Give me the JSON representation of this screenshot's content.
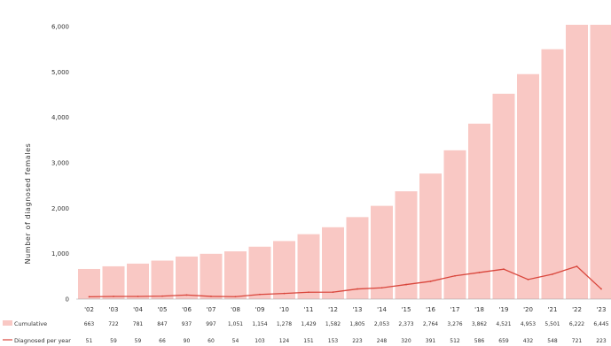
{
  "chart_data": {
    "type": "bar",
    "title": "",
    "xlabel": "",
    "ylabel": "Number of diagnosed females",
    "ylim": [
      0,
      6000
    ],
    "yticks": [
      "0",
      "1,000",
      "2,000",
      "3,000",
      "4,000",
      "5,000",
      "6,000"
    ],
    "grid": false,
    "legend": "bottom-left",
    "categories": [
      "'02",
      "'03",
      "'04",
      "'05",
      "'06",
      "'07",
      "'08",
      "'09",
      "'10",
      "'11",
      "'12",
      "'13",
      "'14",
      "'15",
      "'16",
      "'17",
      "'18",
      "'19",
      "'20",
      "'21",
      "'22",
      "'23"
    ],
    "series": [
      {
        "name": "Cumulative",
        "kind": "bar",
        "color": "#f9c8c4",
        "values": [
          663,
          722,
          781,
          847,
          937,
          997,
          1051,
          1154,
          1278,
          1429,
          1582,
          1805,
          2053,
          2373,
          2764,
          3276,
          3862,
          4521,
          4953,
          5501,
          6222,
          6445
        ],
        "labels": [
          "663",
          "722",
          "781",
          "847",
          "937",
          "997",
          "1,051",
          "1,154",
          "1,278",
          "1,429",
          "1,582",
          "1,805",
          "2,053",
          "2,373",
          "2,764",
          "3,276",
          "3,862",
          "4,521",
          "4,953",
          "5,501",
          "6,222",
          "6,445"
        ]
      },
      {
        "name": "Diagnosed per year",
        "kind": "line",
        "color": "#d9463c",
        "values": [
          51,
          59,
          59,
          66,
          90,
          60,
          54,
          103,
          124,
          151,
          153,
          223,
          248,
          320,
          391,
          512,
          586,
          659,
          432,
          548,
          721,
          223
        ],
        "labels": [
          "51",
          "59",
          "59",
          "66",
          "90",
          "60",
          "54",
          "103",
          "124",
          "151",
          "153",
          "223",
          "248",
          "320",
          "391",
          "512",
          "586",
          "659",
          "432",
          "548",
          "721",
          "223"
        ]
      }
    ]
  }
}
